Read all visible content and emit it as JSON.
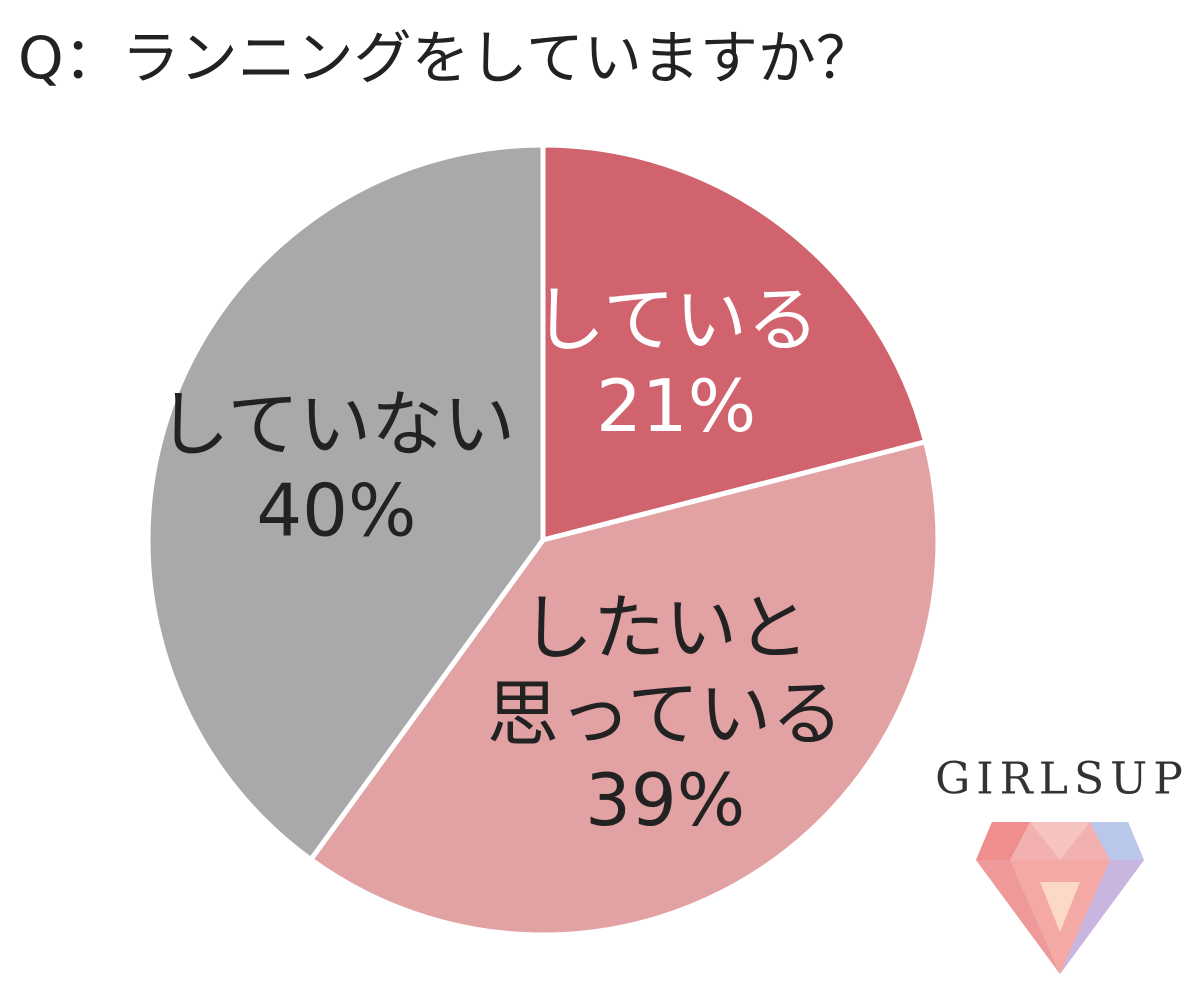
{
  "chart_data": {
    "type": "pie",
    "title": "Q：ランニングをしていますか？",
    "categories": [
      [
        "している"
      ],
      [
        "したいと",
        "思っている"
      ],
      [
        "していない"
      ]
    ],
    "values": [
      21,
      39,
      40
    ],
    "value_labels": [
      "21%",
      "39%",
      "40%"
    ],
    "colors": [
      "#d0636d",
      "#e2a1a3",
      "#a9a9ab"
    ]
  },
  "brand": "GIRLSUP"
}
